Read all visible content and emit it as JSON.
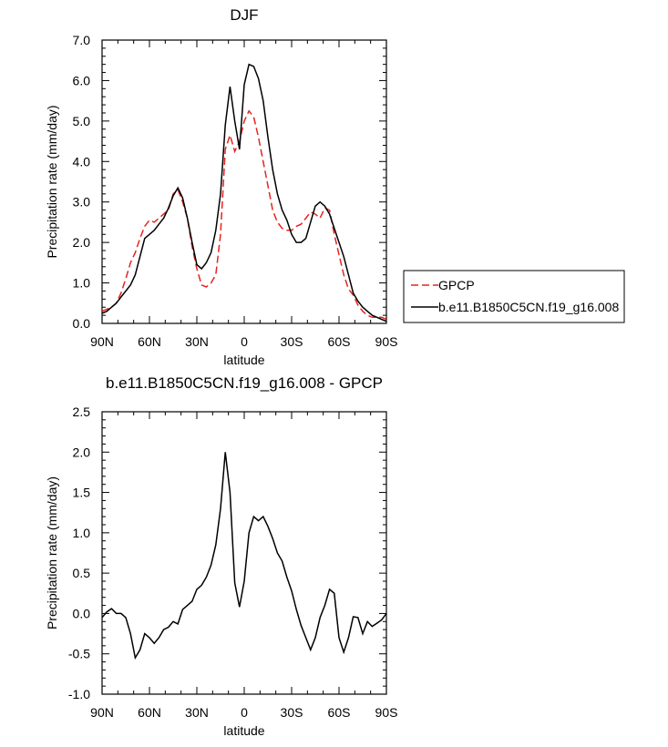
{
  "chart_data": [
    {
      "type": "line",
      "title": "DJF",
      "xlabel": "latitude",
      "ylabel": "Precipitation rate (mm/day)",
      "xlim": [
        90,
        -90
      ],
      "ylim": [
        0,
        7
      ],
      "xticks": [
        {
          "v": 90,
          "label": "90N"
        },
        {
          "v": 60,
          "label": "60N"
        },
        {
          "v": 30,
          "label": "30N"
        },
        {
          "v": 0,
          "label": "0"
        },
        {
          "v": -30,
          "label": "30S"
        },
        {
          "v": -60,
          "label": "60S"
        },
        {
          "v": -90,
          "label": "90S"
        }
      ],
      "yticks": [
        {
          "v": 0,
          "label": "0.0"
        },
        {
          "v": 1,
          "label": "1.0"
        },
        {
          "v": 2,
          "label": "2.0"
        },
        {
          "v": 3,
          "label": "3.0"
        },
        {
          "v": 4,
          "label": "4.0"
        },
        {
          "v": 5,
          "label": "5.0"
        },
        {
          "v": 6,
          "label": "6.0"
        },
        {
          "v": 7,
          "label": "7.0"
        }
      ],
      "legend": "outside-right",
      "series": [
        {
          "name": "GPCP",
          "color": "#e8231f",
          "dash": true,
          "x": [
            90,
            87,
            84,
            81,
            78,
            75,
            72,
            69,
            66,
            63,
            60,
            57,
            54,
            51,
            48,
            45,
            42,
            39,
            36,
            33,
            30,
            27,
            24,
            21,
            18,
            15,
            12,
            9,
            6,
            3,
            0,
            -3,
            -6,
            -9,
            -12,
            -15,
            -18,
            -21,
            -24,
            -27,
            -30,
            -33,
            -36,
            -39,
            -42,
            -45,
            -48,
            -51,
            -54,
            -57,
            -60,
            -63,
            -66,
            -69,
            -72,
            -75,
            -78,
            -81,
            -84,
            -87,
            -90
          ],
          "y": [
            0.3,
            0.35,
            0.4,
            0.5,
            0.75,
            1.1,
            1.5,
            1.75,
            2.1,
            2.4,
            2.55,
            2.5,
            2.6,
            2.7,
            2.8,
            3.2,
            3.3,
            3.0,
            2.6,
            1.9,
            1.35,
            0.95,
            0.9,
            1.0,
            1.2,
            2.2,
            4.3,
            4.65,
            4.25,
            4.5,
            5.0,
            5.25,
            5.1,
            4.6,
            4.0,
            3.4,
            2.8,
            2.5,
            2.35,
            2.3,
            2.3,
            2.4,
            2.45,
            2.6,
            2.75,
            2.7,
            2.6,
            2.85,
            2.8,
            2.2,
            1.7,
            1.2,
            0.85,
            0.7,
            0.45,
            0.3,
            0.2,
            0.15,
            0.15,
            0.15,
            0.1
          ]
        },
        {
          "name": "b.e11.B1850C5CN.f19_g16.008",
          "color": "#000000",
          "dash": false,
          "x": [
            90,
            87,
            84,
            81,
            78,
            75,
            72,
            69,
            66,
            63,
            60,
            57,
            54,
            51,
            48,
            45,
            42,
            39,
            36,
            33,
            30,
            27,
            24,
            21,
            18,
            15,
            12,
            9,
            6,
            3,
            0,
            -3,
            -6,
            -9,
            -12,
            -15,
            -18,
            -21,
            -24,
            -27,
            -30,
            -33,
            -36,
            -39,
            -42,
            -45,
            -48,
            -51,
            -54,
            -57,
            -60,
            -63,
            -66,
            -69,
            -72,
            -75,
            -78,
            -81,
            -84,
            -87,
            -90
          ],
          "y": [
            0.25,
            0.3,
            0.4,
            0.5,
            0.65,
            0.8,
            0.95,
            1.2,
            1.65,
            2.1,
            2.2,
            2.3,
            2.45,
            2.6,
            2.85,
            3.15,
            3.35,
            3.1,
            2.6,
            2.0,
            1.45,
            1.35,
            1.5,
            1.75,
            2.3,
            3.2,
            4.9,
            5.85,
            5.0,
            4.3,
            5.9,
            6.4,
            6.35,
            6.05,
            5.5,
            4.6,
            3.8,
            3.2,
            2.8,
            2.55,
            2.2,
            2.0,
            2.0,
            2.1,
            2.5,
            2.9,
            3.0,
            2.9,
            2.7,
            2.35,
            2.0,
            1.65,
            1.2,
            0.75,
            0.55,
            0.4,
            0.3,
            0.2,
            0.15,
            0.1,
            0.05
          ]
        }
      ]
    },
    {
      "type": "line",
      "title": "b.e11.B1850C5CN.f19_g16.008 - GPCP",
      "xlabel": "latitude",
      "ylabel": "Precipitation rate (mm/day)",
      "xlim": [
        90,
        -90
      ],
      "ylim": [
        -1,
        2.5
      ],
      "xticks": [
        {
          "v": 90,
          "label": "90N"
        },
        {
          "v": 60,
          "label": "60N"
        },
        {
          "v": 30,
          "label": "30N"
        },
        {
          "v": 0,
          "label": "0"
        },
        {
          "v": -30,
          "label": "30S"
        },
        {
          "v": -60,
          "label": "60S"
        },
        {
          "v": -90,
          "label": "90S"
        }
      ],
      "yticks": [
        {
          "v": -1,
          "label": "-1.0"
        },
        {
          "v": -0.5,
          "label": "-0.5"
        },
        {
          "v": 0,
          "label": "0.0"
        },
        {
          "v": 0.5,
          "label": "0.5"
        },
        {
          "v": 1,
          "label": "1.0"
        },
        {
          "v": 1.5,
          "label": "1.5"
        },
        {
          "v": 2,
          "label": "2.0"
        },
        {
          "v": 2.5,
          "label": "2.5"
        }
      ],
      "series": [
        {
          "color": "#000000",
          "dash": false,
          "x": [
            90,
            87,
            84,
            81,
            78,
            75,
            72,
            69,
            66,
            63,
            60,
            57,
            54,
            51,
            48,
            45,
            42,
            39,
            36,
            33,
            30,
            27,
            24,
            21,
            18,
            15,
            12,
            9,
            6,
            3,
            0,
            -3,
            -6,
            -9,
            -12,
            -15,
            -18,
            -21,
            -24,
            -27,
            -30,
            -33,
            -36,
            -39,
            -42,
            -45,
            -48,
            -51,
            -54,
            -57,
            -60,
            -63,
            -66,
            -69,
            -72,
            -75,
            -78,
            -81,
            -84,
            -87,
            -90
          ],
          "y": [
            -0.05,
            0.02,
            0.06,
            0.0,
            0.0,
            -0.05,
            -0.25,
            -0.55,
            -0.45,
            -0.25,
            -0.3,
            -0.37,
            -0.3,
            -0.2,
            -0.17,
            -0.1,
            -0.13,
            0.05,
            0.1,
            0.15,
            0.3,
            0.35,
            0.45,
            0.6,
            0.85,
            1.3,
            2.0,
            1.5,
            0.38,
            0.08,
            0.4,
            1.0,
            1.2,
            1.15,
            1.2,
            1.08,
            0.93,
            0.75,
            0.65,
            0.45,
            0.28,
            0.05,
            -0.15,
            -0.3,
            -0.45,
            -0.3,
            -0.05,
            0.1,
            0.3,
            0.25,
            -0.3,
            -0.48,
            -0.3,
            -0.04,
            -0.05,
            -0.25,
            -0.1,
            -0.16,
            -0.12,
            -0.08,
            0.0
          ]
        }
      ]
    }
  ]
}
